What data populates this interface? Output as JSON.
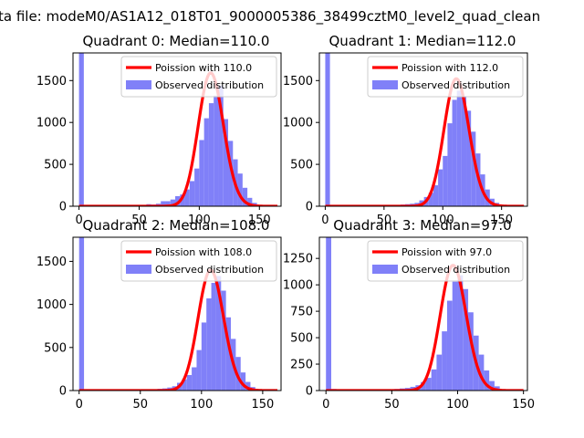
{
  "suptitle": "ta file: modeM0/AS1A12_018T01_9000005386_38499cztM0_level2_quad_clean",
  "colors": {
    "hist": "#8080f8",
    "poisson": "#ff0000",
    "axes": "#000000"
  },
  "chart_data": [
    {
      "type": "bar",
      "title": "Quadrant 0: Median=110.0",
      "median": 110.0,
      "xlim": [
        -5,
        168
      ],
      "ylim": [
        0,
        1830
      ],
      "xticks": [
        0,
        50,
        100,
        150
      ],
      "yticks": [
        0,
        500,
        1000,
        1500
      ],
      "bin_width": 4,
      "bins": [
        [
          0,
          1830
        ],
        [
          52,
          10
        ],
        [
          56,
          25
        ],
        [
          60,
          20
        ],
        [
          64,
          30
        ],
        [
          68,
          60
        ],
        [
          72,
          60
        ],
        [
          76,
          80
        ],
        [
          80,
          120
        ],
        [
          84,
          140
        ],
        [
          88,
          200
        ],
        [
          92,
          300
        ],
        [
          96,
          450
        ],
        [
          100,
          790
        ],
        [
          104,
          1050
        ],
        [
          108,
          1230
        ],
        [
          112,
          1320
        ],
        [
          116,
          1440
        ],
        [
          120,
          1040
        ],
        [
          124,
          780
        ],
        [
          128,
          560
        ],
        [
          132,
          390
        ],
        [
          136,
          220
        ],
        [
          140,
          100
        ],
        [
          144,
          40
        ],
        [
          148,
          10
        ]
      ],
      "legend": {
        "position": "upper right",
        "line": "Poission with 110.0",
        "hist": "Observed distribution"
      }
    },
    {
      "type": "bar",
      "title": "Quadrant 1: Median=112.0",
      "median": 112.0,
      "xlim": [
        -5,
        172
      ],
      "ylim": [
        0,
        1830
      ],
      "xticks": [
        0,
        50,
        100,
        150
      ],
      "yticks": [
        0,
        500,
        1000,
        1500
      ],
      "bin_width": 4,
      "bins": [
        [
          0,
          1830
        ],
        [
          56,
          10
        ],
        [
          60,
          15
        ],
        [
          64,
          20
        ],
        [
          68,
          25
        ],
        [
          72,
          30
        ],
        [
          76,
          40
        ],
        [
          80,
          70
        ],
        [
          84,
          110
        ],
        [
          88,
          160
        ],
        [
          92,
          250
        ],
        [
          96,
          440
        ],
        [
          100,
          600
        ],
        [
          104,
          990
        ],
        [
          108,
          1270
        ],
        [
          112,
          1380
        ],
        [
          116,
          1310
        ],
        [
          120,
          1140
        ],
        [
          124,
          890
        ],
        [
          128,
          630
        ],
        [
          132,
          380
        ],
        [
          136,
          200
        ],
        [
          140,
          90
        ],
        [
          144,
          40
        ],
        [
          148,
          10
        ]
      ],
      "legend": {
        "position": "upper right",
        "line": "Poission with 112.0",
        "hist": "Observed distribution"
      }
    },
    {
      "type": "bar",
      "title": "Quadrant 2: Median=108.0",
      "median": 108.0,
      "xlim": [
        -5,
        165
      ],
      "ylim": [
        0,
        1780
      ],
      "xticks": [
        0,
        50,
        100,
        150
      ],
      "yticks": [
        0,
        500,
        1000,
        1500
      ],
      "bin_width": 4,
      "bins": [
        [
          0,
          1780
        ],
        [
          52,
          10
        ],
        [
          56,
          15
        ],
        [
          60,
          15
        ],
        [
          64,
          20
        ],
        [
          68,
          25
        ],
        [
          72,
          35
        ],
        [
          76,
          50
        ],
        [
          80,
          90
        ],
        [
          84,
          130
        ],
        [
          88,
          180
        ],
        [
          92,
          270
        ],
        [
          96,
          470
        ],
        [
          100,
          790
        ],
        [
          104,
          1070
        ],
        [
          108,
          1250
        ],
        [
          112,
          1330
        ],
        [
          116,
          1160
        ],
        [
          120,
          850
        ],
        [
          124,
          600
        ],
        [
          128,
          390
        ],
        [
          132,
          210
        ],
        [
          136,
          100
        ],
        [
          140,
          40
        ],
        [
          144,
          10
        ]
      ],
      "legend": {
        "position": "upper right",
        "line": "Poission with 108.0",
        "hist": "Observed distribution"
      }
    },
    {
      "type": "bar",
      "title": "Quadrant 3: Median=97.0",
      "median": 97.0,
      "xlim": [
        -5,
        153
      ],
      "ylim": [
        0,
        1450
      ],
      "xticks": [
        0,
        50,
        100,
        150
      ],
      "yticks": [
        0,
        250,
        500,
        750,
        1000,
        1250
      ],
      "bin_width": 4,
      "bins": [
        [
          0,
          1450
        ],
        [
          4,
          15
        ],
        [
          48,
          10
        ],
        [
          52,
          15
        ],
        [
          56,
          20
        ],
        [
          60,
          25
        ],
        [
          64,
          35
        ],
        [
          68,
          50
        ],
        [
          72,
          80
        ],
        [
          76,
          120
        ],
        [
          80,
          200
        ],
        [
          84,
          340
        ],
        [
          88,
          560
        ],
        [
          92,
          850
        ],
        [
          96,
          1030
        ],
        [
          100,
          1090
        ],
        [
          104,
          960
        ],
        [
          108,
          740
        ],
        [
          112,
          520
        ],
        [
          116,
          340
        ],
        [
          120,
          190
        ],
        [
          124,
          90
        ],
        [
          128,
          40
        ],
        [
          132,
          10
        ]
      ],
      "legend": {
        "position": "upper right",
        "line": "Poission with 97.0",
        "hist": "Observed distribution"
      }
    }
  ]
}
